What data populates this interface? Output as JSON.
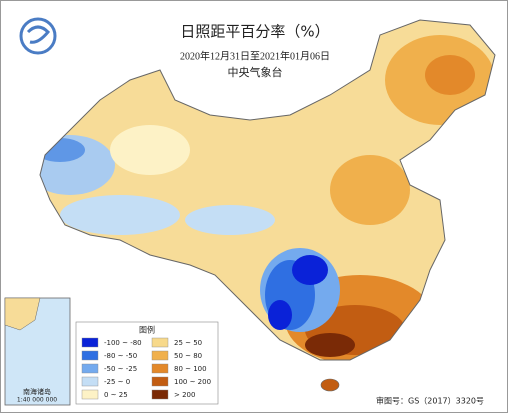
{
  "header": {
    "title": "日照距平百分率（%）",
    "period": "2020年12月31日至2021年01月06日",
    "source": "中央气象台"
  },
  "legend": {
    "title": "图例",
    "items": [
      {
        "label": "-100 ~ -80",
        "color": "#0a22d8"
      },
      {
        "label": "-80 ~ -50",
        "color": "#2f6fe2"
      },
      {
        "label": "-50 ~ -25",
        "color": "#74aaee"
      },
      {
        "label": "-25 ~ 0",
        "color": "#c4def5"
      },
      {
        "label": "0 ~ 25",
        "color": "#fdf2c6"
      },
      {
        "label": "25 ~ 50",
        "color": "#f7d98b"
      },
      {
        "label": "50 ~ 80",
        "color": "#f0b04c"
      },
      {
        "label": "80 ~ 100",
        "color": "#e3892a"
      },
      {
        "label": "100 ~ 200",
        "color": "#c25d12"
      },
      {
        "label": "> 200",
        "color": "#7a2a06"
      }
    ]
  },
  "inset": {
    "title": "南海诸岛",
    "scale": "1:40 000 000"
  },
  "footer": {
    "approval": "审图号：GS（2017）3320号"
  }
}
